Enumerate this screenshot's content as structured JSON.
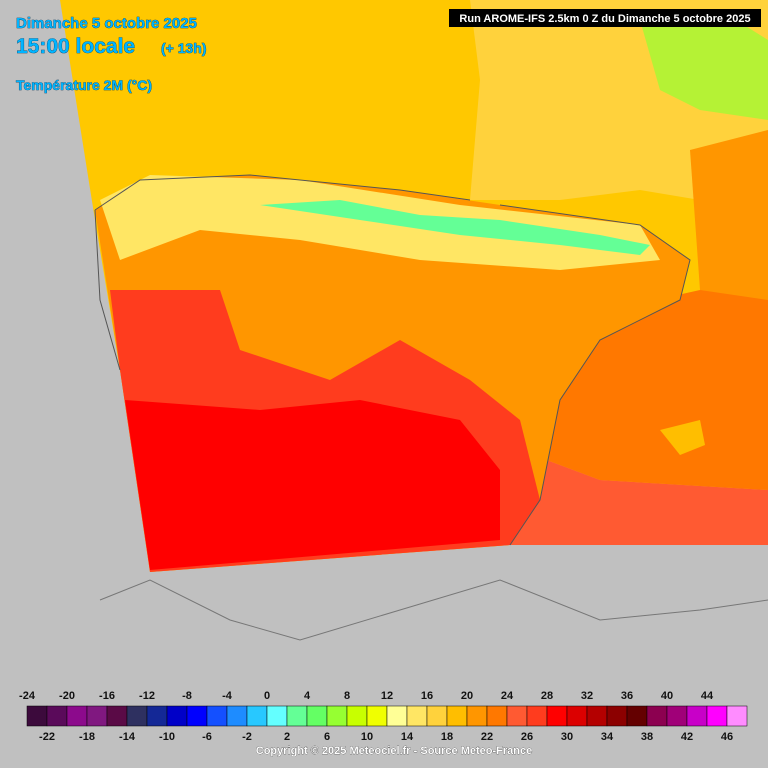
{
  "header": {
    "date": "Dimanche 5 octobre 2025",
    "time": "15:00 locale",
    "lead": "(+ 13h)",
    "parameter": "Température 2M (°C)",
    "run": "Run AROME-IFS 2.5km 0 Z du Dimanche 5 octobre 2025"
  },
  "legend": {
    "values": [
      -24,
      -22,
      -20,
      -18,
      -16,
      -14,
      -12,
      -10,
      -8,
      -6,
      -4,
      -2,
      0,
      2,
      4,
      6,
      8,
      10,
      12,
      14,
      16,
      18,
      20,
      22,
      24,
      26,
      28,
      30,
      32,
      34,
      36,
      38,
      40,
      42,
      44,
      46
    ],
    "colors": [
      "#3c0a3c",
      "#5a0a5a",
      "#8c0a8c",
      "#801880",
      "#5a0a46",
      "#2e3060",
      "#142896",
      "#0000c8",
      "#0000ff",
      "#1450ff",
      "#1e8cff",
      "#28c8ff",
      "#64ffff",
      "#64ff96",
      "#64ff64",
      "#96ff32",
      "#c8ff00",
      "#f0ff00",
      "#ffff96",
      "#ffe664",
      "#ffd23c",
      "#ffbe00",
      "#ff9600",
      "#ff7800",
      "#ff5a32",
      "#ff3c1e",
      "#ff0000",
      "#dc0000",
      "#b40000",
      "#8c0000",
      "#640000",
      "#8c0050",
      "#a00078",
      "#c800c8",
      "#ff00ff",
      "#ff8cff"
    ]
  },
  "footer": {
    "copyright": "Copyright © 2025 Meteociel.fr - Source Meteo-France"
  }
}
